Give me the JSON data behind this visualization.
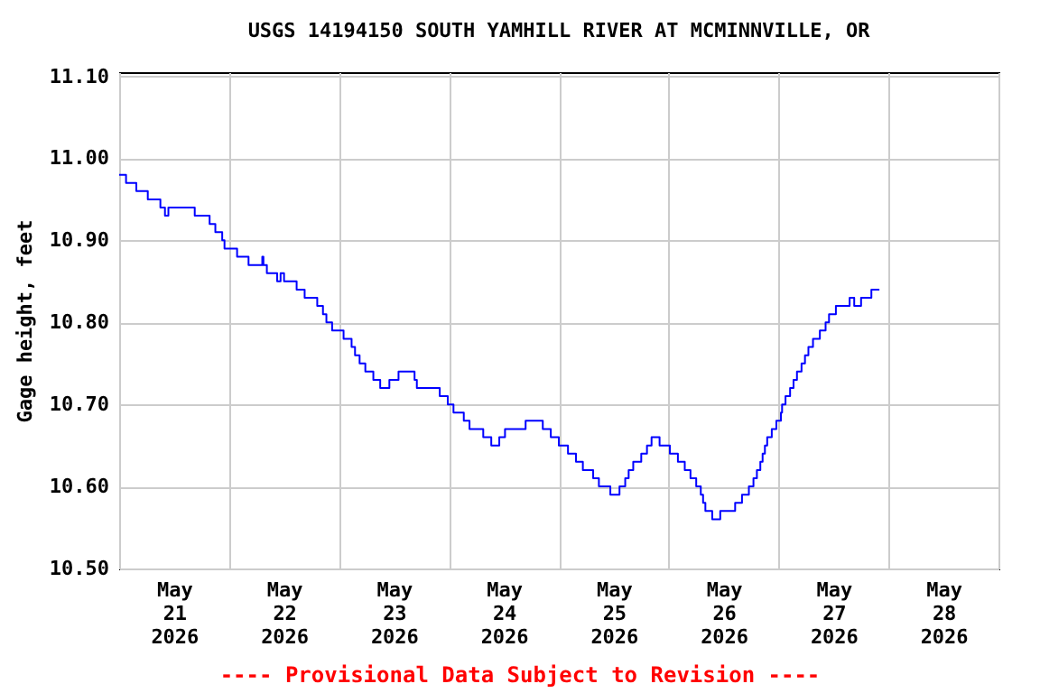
{
  "chart_data": {
    "type": "step",
    "title": "USGS 14194150 SOUTH YAMHILL RIVER AT MCMINNVILLE, OR",
    "ylabel": "Gage height, feet",
    "annotations": [
      "---- Provisional Data Subject to Revision ----"
    ],
    "grid": true,
    "line_style": "solid",
    "xlim": [
      "2026-05-21T00:00",
      "2026-05-29T00:00"
    ],
    "xticks": [
      {
        "value": "2026-05-21T00:00",
        "label": null
      },
      {
        "value": "2026-05-21T12:00",
        "label": "May 21 2026"
      },
      {
        "value": "2026-05-22T00:00",
        "label": null
      },
      {
        "value": "2026-05-22T12:00",
        "label": "May 22 2026"
      },
      {
        "value": "2026-05-23T00:00",
        "label": null
      },
      {
        "value": "2026-05-23T12:00",
        "label": "May 23 2026"
      },
      {
        "value": "2026-05-24T00:00",
        "label": null
      },
      {
        "value": "2026-05-24T12:00",
        "label": "May 24 2026"
      },
      {
        "value": "2026-05-25T00:00",
        "label": null
      },
      {
        "value": "2026-05-25T12:00",
        "label": "May 25 2026"
      },
      {
        "value": "2026-05-26T00:00",
        "label": null
      },
      {
        "value": "2026-05-26T12:00",
        "label": "May 26 2026"
      },
      {
        "value": "2026-05-27T00:00",
        "label": null
      },
      {
        "value": "2026-05-27T12:00",
        "label": "May 27 2026"
      },
      {
        "value": "2026-05-28T00:00",
        "label": null
      },
      {
        "value": "2026-05-28T12:00",
        "label": "May 28 2026"
      },
      {
        "value": "2026-05-29T00:00",
        "label": null
      }
    ],
    "ylim": [
      10.5,
      11.105
    ],
    "yticks": [
      {
        "value": 10.5,
        "label": "10.50"
      },
      {
        "value": 10.6,
        "label": "10.60"
      },
      {
        "value": 10.7,
        "label": "10.70"
      },
      {
        "value": 10.8,
        "label": "10.80"
      },
      {
        "value": 10.9,
        "label": "10.90"
      },
      {
        "value": 11.0,
        "label": "11.00"
      },
      {
        "value": 11.1,
        "label": "11.10"
      }
    ],
    "x": [
      "2026-05-21T00:00",
      "2026-05-21T01:30",
      "2026-05-21T03:45",
      "2026-05-21T06:15",
      "2026-05-21T09:00",
      "2026-05-21T10:00",
      "2026-05-21T10:45",
      "2026-05-21T16:30",
      "2026-05-21T19:45",
      "2026-05-21T21:00",
      "2026-05-21T22:30",
      "2026-05-21T23:00",
      "2026-05-22T01:45",
      "2026-05-22T04:15",
      "2026-05-22T07:15",
      "2026-05-22T07:30",
      "2026-05-22T08:15",
      "2026-05-22T10:30",
      "2026-05-22T11:15",
      "2026-05-22T12:00",
      "2026-05-22T14:45",
      "2026-05-22T16:30",
      "2026-05-22T19:15",
      "2026-05-22T20:30",
      "2026-05-22T21:15",
      "2026-05-22T22:30",
      "2026-05-23T01:00",
      "2026-05-23T02:45",
      "2026-05-23T03:30",
      "2026-05-23T04:30",
      "2026-05-23T05:45",
      "2026-05-23T07:30",
      "2026-05-23T09:00",
      "2026-05-23T11:00",
      "2026-05-23T13:00",
      "2026-05-23T16:30",
      "2026-05-23T17:00",
      "2026-05-23T22:00",
      "2026-05-23T23:45",
      "2026-05-24T01:00",
      "2026-05-24T03:15",
      "2026-05-24T04:30",
      "2026-05-24T07:30",
      "2026-05-24T09:15",
      "2026-05-24T11:00",
      "2026-05-24T12:15",
      "2026-05-24T16:45",
      "2026-05-24T20:30",
      "2026-05-24T22:15",
      "2026-05-25T00:00",
      "2026-05-25T02:00",
      "2026-05-25T03:45",
      "2026-05-25T05:15",
      "2026-05-25T07:30",
      "2026-05-25T08:45",
      "2026-05-25T11:15",
      "2026-05-25T13:15",
      "2026-05-25T14:30",
      "2026-05-25T15:15",
      "2026-05-25T16:15",
      "2026-05-25T18:00",
      "2026-05-25T19:15",
      "2026-05-25T20:15",
      "2026-05-25T22:00",
      "2026-05-26T00:15",
      "2026-05-26T02:00",
      "2026-05-26T03:30",
      "2026-05-26T04:45",
      "2026-05-26T06:00",
      "2026-05-26T07:00",
      "2026-05-26T07:30",
      "2026-05-26T08:00",
      "2026-05-26T09:30",
      "2026-05-26T11:15",
      "2026-05-26T14:30",
      "2026-05-26T16:00",
      "2026-05-26T17:30",
      "2026-05-26T18:30",
      "2026-05-26T19:15",
      "2026-05-26T20:00",
      "2026-05-26T20:30",
      "2026-05-26T21:00",
      "2026-05-26T21:30",
      "2026-05-26T22:30",
      "2026-05-26T23:30",
      "2026-05-27T00:30",
      "2026-05-27T00:45",
      "2026-05-27T01:30",
      "2026-05-27T02:30",
      "2026-05-27T03:15",
      "2026-05-27T04:00",
      "2026-05-27T05:00",
      "2026-05-27T05:45",
      "2026-05-27T06:30",
      "2026-05-27T07:30",
      "2026-05-27T09:00",
      "2026-05-27T10:15",
      "2026-05-27T11:00",
      "2026-05-27T12:30",
      "2026-05-27T15:30",
      "2026-05-27T16:30",
      "2026-05-27T18:00",
      "2026-05-27T20:15",
      "2026-05-27T22:00"
    ],
    "series": [
      {
        "color": "#0000ff",
        "values": [
          10.98,
          10.97,
          10.96,
          10.95,
          10.94,
          10.93,
          10.94,
          10.93,
          10.92,
          10.91,
          10.9,
          10.89,
          10.88,
          10.87,
          10.88,
          10.87,
          10.86,
          10.85,
          10.86,
          10.85,
          10.84,
          10.83,
          10.82,
          10.81,
          10.8,
          10.79,
          10.78,
          10.77,
          10.76,
          10.75,
          10.74,
          10.73,
          10.72,
          10.73,
          10.74,
          10.73,
          10.72,
          10.71,
          10.7,
          10.69,
          10.68,
          10.67,
          10.66,
          10.65,
          10.66,
          10.67,
          10.68,
          10.67,
          10.66,
          10.65,
          10.64,
          10.63,
          10.62,
          10.61,
          10.6,
          10.59,
          10.6,
          10.61,
          10.62,
          10.63,
          10.64,
          10.65,
          10.66,
          10.65,
          10.64,
          10.63,
          10.62,
          10.61,
          10.6,
          10.59,
          10.58,
          10.57,
          10.56,
          10.57,
          10.58,
          10.59,
          10.6,
          10.61,
          10.62,
          10.63,
          10.64,
          10.65,
          10.66,
          10.67,
          10.68,
          10.69,
          10.7,
          10.71,
          10.72,
          10.73,
          10.74,
          10.75,
          10.76,
          10.77,
          10.78,
          10.79,
          10.8,
          10.81,
          10.82,
          10.83,
          10.82,
          10.83,
          10.84,
          10.84
        ]
      }
    ]
  }
}
